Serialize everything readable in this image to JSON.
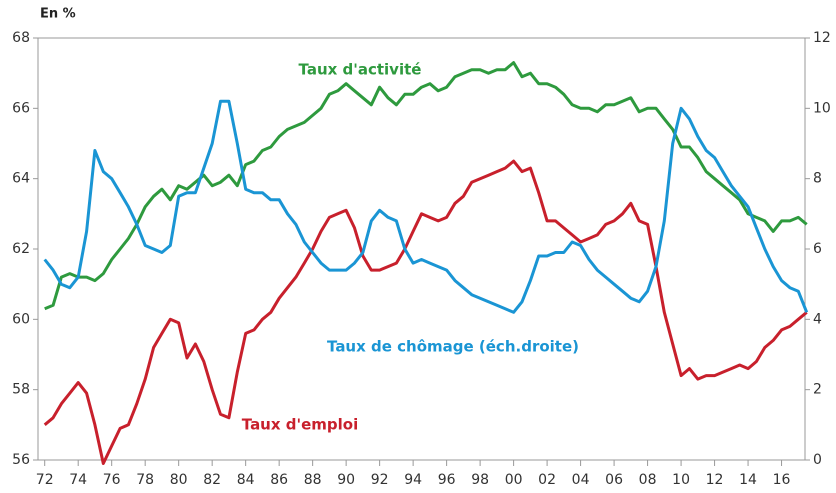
{
  "chart_data": {
    "type": "line",
    "axis_label": "En %",
    "x": [
      1972,
      1972.5,
      1973,
      1973.5,
      1974,
      1974.5,
      1975,
      1975.5,
      1976,
      1976.5,
      1977,
      1977.5,
      1978,
      1978.5,
      1979,
      1979.5,
      1980,
      1980.5,
      1981,
      1981.5,
      1982,
      1982.5,
      1983,
      1983.5,
      1984,
      1984.5,
      1985,
      1985.5,
      1986,
      1986.5,
      1987,
      1987.5,
      1988,
      1988.5,
      1989,
      1989.5,
      1990,
      1990.5,
      1991,
      1991.5,
      1992,
      1992.5,
      1993,
      1993.5,
      1994,
      1994.5,
      1995,
      1995.5,
      1996,
      1996.5,
      1997,
      1997.5,
      1998,
      1998.5,
      1999,
      1999.5,
      2000,
      2000.5,
      2001,
      2001.5,
      2002,
      2002.5,
      2003,
      2003.5,
      2004,
      2004.5,
      2005,
      2005.5,
      2006,
      2006.5,
      2007,
      2007.5,
      2008,
      2008.5,
      2009,
      2009.5,
      2010,
      2010.5,
      2011,
      2011.5,
      2012,
      2012.5,
      2013,
      2013.5,
      2014,
      2014.5,
      2015,
      2015.5,
      2016,
      2016.5,
      2017,
      2017.5
    ],
    "series": [
      {
        "name": "Taux d'activité",
        "color": "#2e9a3e",
        "axis": "y",
        "values": [
          60.3,
          60.4,
          61.2,
          61.3,
          61.2,
          61.2,
          61.1,
          61.3,
          61.7,
          62.0,
          62.3,
          62.7,
          63.2,
          63.5,
          63.7,
          63.4,
          63.8,
          63.7,
          63.9,
          64.1,
          63.8,
          63.9,
          64.1,
          63.8,
          64.4,
          64.5,
          64.8,
          64.9,
          65.2,
          65.4,
          65.5,
          65.6,
          65.8,
          66.0,
          66.4,
          66.5,
          66.7,
          66.5,
          66.3,
          66.1,
          66.6,
          66.3,
          66.1,
          66.4,
          66.4,
          66.6,
          66.7,
          66.5,
          66.6,
          66.9,
          67.0,
          67.1,
          67.1,
          67.0,
          67.1,
          67.1,
          67.3,
          66.9,
          67.0,
          66.7,
          66.7,
          66.6,
          66.4,
          66.1,
          66.0,
          66.0,
          65.9,
          66.1,
          66.1,
          66.2,
          66.3,
          65.9,
          66.0,
          66.0,
          65.7,
          65.4,
          64.9,
          64.9,
          64.6,
          64.2,
          64.0,
          63.8,
          63.6,
          63.4,
          63.0,
          62.9,
          62.8,
          62.5,
          62.8,
          62.8,
          62.9,
          62.7
        ]
      },
      {
        "name": "Taux d'emploi",
        "color": "#c8202c",
        "axis": "y",
        "values": [
          57.0,
          57.2,
          57.6,
          57.9,
          58.2,
          57.9,
          57.0,
          55.9,
          56.4,
          56.9,
          57.0,
          57.6,
          58.3,
          59.2,
          59.6,
          60.0,
          59.9,
          58.9,
          59.3,
          58.8,
          58.0,
          57.3,
          57.2,
          58.5,
          59.6,
          59.7,
          60.0,
          60.2,
          60.6,
          60.9,
          61.2,
          61.6,
          62.0,
          62.5,
          62.9,
          63.0,
          63.1,
          62.6,
          61.8,
          61.4,
          61.4,
          61.5,
          61.6,
          62.0,
          62.5,
          63.0,
          62.9,
          62.8,
          62.9,
          63.3,
          63.5,
          63.9,
          64.0,
          64.1,
          64.2,
          64.3,
          64.5,
          64.2,
          64.3,
          63.6,
          62.8,
          62.8,
          62.6,
          62.4,
          62.2,
          62.3,
          62.4,
          62.7,
          62.8,
          63.0,
          63.3,
          62.8,
          62.7,
          61.5,
          60.2,
          59.3,
          58.4,
          58.6,
          58.3,
          58.4,
          58.4,
          58.5,
          58.6,
          58.7,
          58.6,
          58.8,
          59.2,
          59.4,
          59.7,
          59.8,
          60.0,
          60.2
        ]
      },
      {
        "name": "Taux de chômage (éch.droite)",
        "color": "#1a95d4",
        "axis": "y2",
        "values": [
          5.7,
          5.4,
          5.0,
          4.9,
          5.2,
          6.5,
          8.8,
          8.2,
          8.0,
          7.6,
          7.2,
          6.7,
          6.1,
          6.0,
          5.9,
          6.1,
          7.5,
          7.6,
          7.6,
          8.3,
          9.0,
          10.2,
          10.2,
          9.0,
          7.7,
          7.6,
          7.6,
          7.4,
          7.4,
          7.0,
          6.7,
          6.2,
          5.9,
          5.6,
          5.4,
          5.4,
          5.4,
          5.6,
          5.9,
          6.8,
          7.1,
          6.9,
          6.8,
          6.0,
          5.6,
          5.7,
          5.6,
          5.5,
          5.4,
          5.1,
          4.9,
          4.7,
          4.6,
          4.5,
          4.4,
          4.3,
          4.2,
          4.5,
          5.1,
          5.8,
          5.8,
          5.9,
          5.9,
          6.2,
          6.1,
          5.7,
          5.4,
          5.2,
          5.0,
          4.8,
          4.6,
          4.5,
          4.8,
          5.5,
          6.8,
          9.0,
          10.0,
          9.7,
          9.2,
          8.8,
          8.6,
          8.2,
          7.8,
          7.5,
          7.2,
          6.6,
          6.0,
          5.5,
          5.1,
          4.9,
          4.8,
          4.2
        ]
      }
    ],
    "xlim": [
      1971.6,
      2017.4
    ],
    "xticks": [
      {
        "value": 1972,
        "label": "72"
      },
      {
        "value": 1974,
        "label": "74"
      },
      {
        "value": 1976,
        "label": "76"
      },
      {
        "value": 1978,
        "label": "78"
      },
      {
        "value": 1980,
        "label": "80"
      },
      {
        "value": 1982,
        "label": "82"
      },
      {
        "value": 1984,
        "label": "84"
      },
      {
        "value": 1986,
        "label": "86"
      },
      {
        "value": 1988,
        "label": "88"
      },
      {
        "value": 1990,
        "label": "90"
      },
      {
        "value": 1992,
        "label": "92"
      },
      {
        "value": 1994,
        "label": "94"
      },
      {
        "value": 1996,
        "label": "96"
      },
      {
        "value": 1998,
        "label": "98"
      },
      {
        "value": 2000,
        "label": "00"
      },
      {
        "value": 2002,
        "label": "02"
      },
      {
        "value": 2004,
        "label": "04"
      },
      {
        "value": 2006,
        "label": "06"
      },
      {
        "value": 2008,
        "label": "08"
      },
      {
        "value": 2010,
        "label": "10"
      },
      {
        "value": 2012,
        "label": "12"
      },
      {
        "value": 2014,
        "label": "14"
      },
      {
        "value": 2016,
        "label": "16"
      }
    ],
    "ylim": [
      56,
      68
    ],
    "yticks": [
      56,
      58,
      60,
      62,
      64,
      66,
      68
    ],
    "y2lim": [
      0,
      12
    ],
    "y2ticks": [
      0,
      2,
      4,
      6,
      8,
      10,
      12
    ]
  }
}
